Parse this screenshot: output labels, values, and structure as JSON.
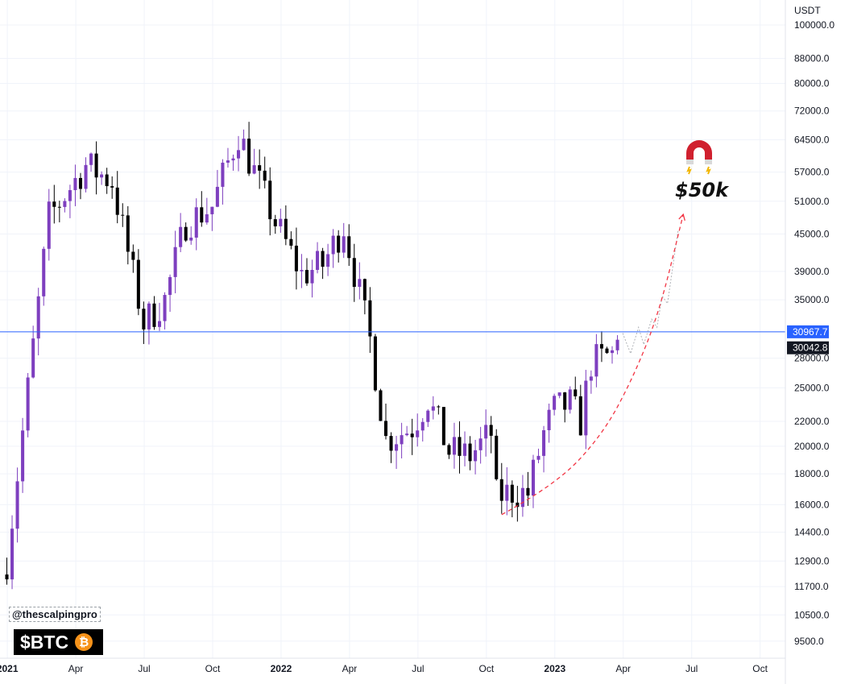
{
  "chart_data": {
    "type": "candlestick",
    "currency_label": "USDT",
    "y_scale": "log",
    "ylim": [
      8900,
      110000
    ],
    "y_ticks": [
      "100000.0",
      "88000.0",
      "80000.0",
      "72000.0",
      "64500.0",
      "57000.0",
      "51000.0",
      "45000.0",
      "39000.0",
      "35000.0",
      "28000.0",
      "25000.0",
      "22000.0",
      "20000.0",
      "18000.0",
      "16000.0",
      "14400.0",
      "12900.0",
      "11700.0",
      "10500.0",
      "9500.0"
    ],
    "x_ticks": [
      {
        "label": "2021",
        "bold": true
      },
      {
        "label": "Apr",
        "bold": false
      },
      {
        "label": "Jul",
        "bold": false
      },
      {
        "label": "Oct",
        "bold": false
      },
      {
        "label": "2022",
        "bold": true
      },
      {
        "label": "Apr",
        "bold": false
      },
      {
        "label": "Jul",
        "bold": false
      },
      {
        "label": "Oct",
        "bold": false
      },
      {
        "label": "2023",
        "bold": true
      },
      {
        "label": "Apr",
        "bold": false
      },
      {
        "label": "Jul",
        "bold": false
      },
      {
        "label": "Oct",
        "bold": false
      }
    ],
    "x_range_weeks": [
      -1.3,
      147.9
    ],
    "week0_label": "2021",
    "key_points": [
      {
        "week": 0,
        "price": 12900
      },
      {
        "week": 8,
        "price": 48000
      },
      {
        "week": 15,
        "price": 58500
      },
      {
        "week": 20,
        "price": 55000
      },
      {
        "week": 26,
        "price": 32000
      },
      {
        "week": 30,
        "price": 35000
      },
      {
        "week": 34,
        "price": 47000
      },
      {
        "week": 39,
        "price": 50000
      },
      {
        "week": 44,
        "price": 66000
      },
      {
        "week": 47,
        "price": 57000
      },
      {
        "week": 51,
        "price": 47000
      },
      {
        "week": 56,
        "price": 38500
      },
      {
        "week": 60,
        "price": 40000
      },
      {
        "week": 64,
        "price": 46500
      },
      {
        "week": 69,
        "price": 30000
      },
      {
        "week": 72,
        "price": 20500
      },
      {
        "week": 77,
        "price": 21500
      },
      {
        "week": 80,
        "price": 24000
      },
      {
        "week": 84,
        "price": 19600
      },
      {
        "week": 88,
        "price": 19300
      },
      {
        "week": 92,
        "price": 21000
      },
      {
        "week": 93,
        "price": 16500
      },
      {
        "week": 96,
        "price": 16800
      },
      {
        "week": 99,
        "price": 16700
      },
      {
        "week": 102,
        "price": 21000
      },
      {
        "week": 104,
        "price": 23000
      },
      {
        "week": 107,
        "price": 23500
      },
      {
        "week": 109,
        "price": 22000
      },
      {
        "week": 111,
        "price": 27500
      },
      {
        "week": 115,
        "price": 28400
      },
      {
        "week": 116,
        "price": 30042.8
      }
    ],
    "horizontal_line": {
      "price": 30967.7,
      "label": "30967.7",
      "color": "#2962ff"
    },
    "last_price": {
      "price": 30042.8,
      "label": "30042.8"
    },
    "projection": [
      {
        "week": 117,
        "price": 30800
      },
      {
        "week": 118.5,
        "price": 28500
      },
      {
        "week": 120,
        "price": 31500
      },
      {
        "week": 121,
        "price": 29500
      },
      {
        "week": 122.5,
        "price": 32500
      },
      {
        "week": 123.5,
        "price": 31500
      },
      {
        "week": 124.5,
        "price": 35500
      },
      {
        "week": 125.5,
        "price": 34500
      },
      {
        "week": 127.5,
        "price": 45500
      }
    ],
    "curve_arrow": [
      {
        "week": 94,
        "price": 15400
      },
      {
        "week": 104,
        "price": 17200
      },
      {
        "week": 113,
        "price": 20800
      },
      {
        "week": 119,
        "price": 26000
      },
      {
        "week": 124,
        "price": 33500
      },
      {
        "week": 128.5,
        "price": 48500
      }
    ],
    "target_label": "$50k",
    "colors": {
      "up": "#7e3fbf",
      "down": "#000000",
      "curve": "#f23645",
      "projection": "#b0b3b8",
      "line": "#2962ff"
    }
  },
  "watermark": {
    "handle": "@thescalpingpro",
    "ticker": "$BTC",
    "coin_glyph": "₿"
  },
  "icons": {
    "magnet": "magnet-icon"
  }
}
